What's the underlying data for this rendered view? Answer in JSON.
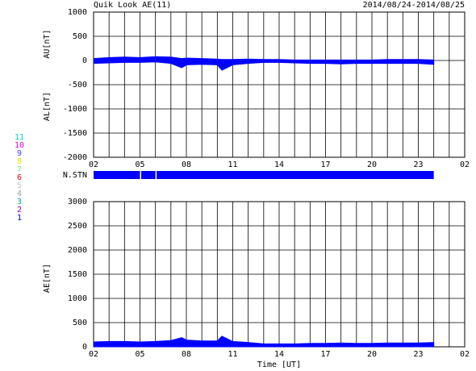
{
  "title": "Quik Look AE(11)",
  "date_range": "2014/08/24-2014/08/25",
  "chart_data": [
    {
      "type": "area",
      "ylabels": [
        "AU[nT]",
        "AL[nT]"
      ],
      "x": [
        2,
        3,
        4,
        5,
        6,
        7,
        7.7,
        8,
        9,
        10,
        10.3,
        11,
        12,
        13,
        14,
        15,
        16,
        17,
        18,
        19,
        20,
        21,
        22,
        23,
        24
      ],
      "series": [
        {
          "color": "#0000ff",
          "values": [
            40,
            60,
            70,
            60,
            80,
            70,
            40,
            50,
            40,
            30,
            20,
            20,
            30,
            20,
            20,
            10,
            10,
            10,
            10,
            10,
            10,
            20,
            20,
            20,
            10
          ]
        },
        {
          "color": "#0000ff",
          "values": [
            -60,
            -50,
            -40,
            -40,
            -30,
            -60,
            -150,
            -90,
            -80,
            -90,
            -200,
            -90,
            -60,
            -40,
            -40,
            -50,
            -60,
            -60,
            -70,
            -60,
            -60,
            -60,
            -60,
            -60,
            -80
          ]
        }
      ],
      "xlim": [
        2,
        26
      ],
      "xticks": [
        {
          "value": 2,
          "label": "02"
        },
        {
          "value": 5,
          "label": "05"
        },
        {
          "value": 8,
          "label": "08"
        },
        11,
        14,
        17,
        20,
        23,
        {
          "value": 26,
          "label": "02"
        }
      ],
      "ylim": [
        -2000,
        1000
      ],
      "yticks": [
        1000,
        500,
        0,
        -500,
        -1000,
        -1500,
        -2000
      ],
      "grid": true,
      "grid_x_step": 1
    },
    {
      "type": "timeline",
      "label": "N.STN",
      "color": "#0000ff",
      "xlim": [
        2,
        26
      ],
      "segments": [
        [
          2,
          5
        ],
        [
          5.08,
          6
        ],
        [
          6.08,
          24
        ]
      ],
      "levels": [
        {
          "value": 11,
          "color": "#00d0d0"
        },
        {
          "value": 10,
          "color": "#e000e0"
        },
        {
          "value": 9,
          "color": "#4040ff"
        },
        {
          "value": 8,
          "color": "#e8e800"
        },
        {
          "value": 7,
          "color": "#80e080"
        },
        {
          "value": 6,
          "color": "#ff0000"
        },
        {
          "value": 5,
          "color": "#c8c8c8"
        },
        {
          "value": 4,
          "color": "#a0a0a0"
        },
        {
          "value": 3,
          "color": "#00a0a0"
        },
        {
          "value": 2,
          "color": "#a000a0"
        },
        {
          "value": 1,
          "color": "#0000c0"
        }
      ]
    },
    {
      "type": "area",
      "ylabels": [
        "AE[nT]"
      ],
      "xlabel": "Time [UT]",
      "x": [
        2,
        3,
        4,
        5,
        6,
        7,
        7.7,
        8,
        9,
        10,
        10.3,
        11,
        12,
        13,
        14,
        15,
        16,
        17,
        18,
        19,
        20,
        21,
        22,
        23,
        24
      ],
      "series": [
        {
          "color": "#0000ff",
          "values": [
            100,
            110,
            110,
            100,
            110,
            130,
            190,
            140,
            120,
            120,
            220,
            110,
            90,
            60,
            60,
            60,
            70,
            70,
            80,
            70,
            70,
            80,
            80,
            80,
            90
          ]
        }
      ],
      "xlim": [
        2,
        26
      ],
      "xticks": [
        {
          "value": 2,
          "label": "02"
        },
        {
          "value": 5,
          "label": "05"
        },
        {
          "value": 8,
          "label": "08"
        },
        11,
        14,
        17,
        20,
        23,
        {
          "value": 26,
          "label": "02"
        }
      ],
      "ylim": [
        0,
        3000
      ],
      "yticks": [
        3000,
        2500,
        2000,
        1500,
        1000,
        500,
        0
      ],
      "grid": true,
      "grid_x_step": 1
    }
  ]
}
